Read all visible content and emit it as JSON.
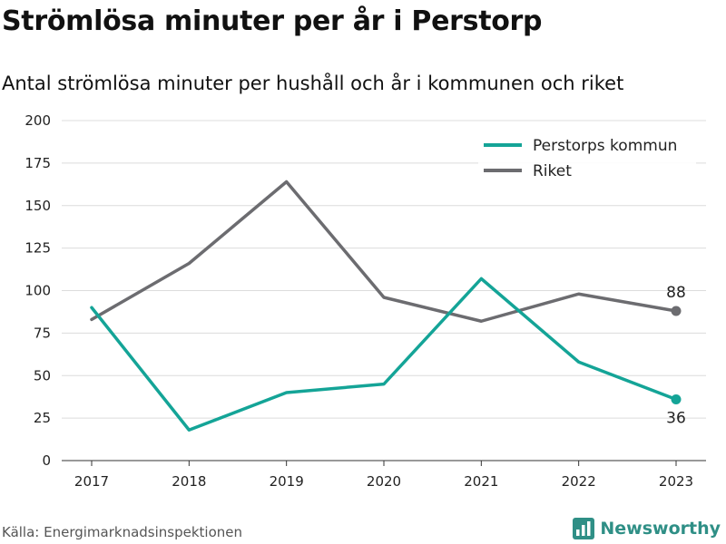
{
  "header": {
    "title": "Strömlösa minuter per år i Perstorp",
    "subtitle": "Antal strömlösa minuter per hushåll och år i kommunen och riket"
  },
  "footer": {
    "source": "Källa: Energimarknadsinspektionen",
    "brand": "Newsworthy",
    "brand_icon": "bar-chart-logo-icon",
    "brand_color": "#2f8f86"
  },
  "chart_data": {
    "type": "line",
    "title": "Strömlösa minuter per år i Perstorp",
    "subtitle": "Antal strömlösa minuter per hushåll och år i kommunen och riket",
    "xlabel": "",
    "ylabel": "",
    "x": [
      "2017",
      "2018",
      "2019",
      "2020",
      "2021",
      "2022",
      "2023"
    ],
    "ylim": [
      0,
      200
    ],
    "yticks": [
      0,
      25,
      50,
      75,
      100,
      125,
      150,
      175,
      200
    ],
    "grid": true,
    "legend": "top-right",
    "series": [
      {
        "name": "Perstorps kommun",
        "color": "#14a497",
        "values": [
          90,
          18,
          40,
          45,
          107,
          58,
          36
        ],
        "end_label": "36"
      },
      {
        "name": "Riket",
        "color": "#6c6c70",
        "values": [
          83,
          116,
          164,
          96,
          82,
          98,
          88
        ],
        "end_label": "88"
      }
    ]
  }
}
